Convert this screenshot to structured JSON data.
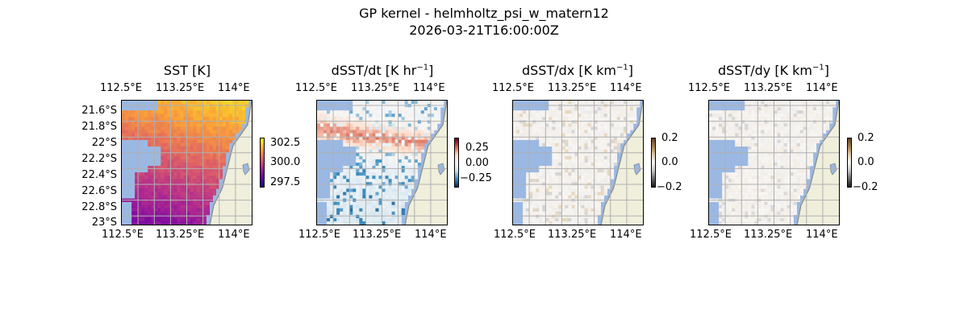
{
  "figure": {
    "title_line1": "GP kernel - helmholtz_psi_w_matern12",
    "title_line2": "2026-03-21T16:00:00Z"
  },
  "map_extent": {
    "lon": [
      112.45,
      114.1
    ],
    "lat": [
      -23.03,
      -21.48
    ]
  },
  "panels": [
    {
      "title": "SST [K]",
      "field": "sst",
      "colormap": "plasma-like (dark purple → orange → yellow)",
      "colorbar": {
        "min": 297.0,
        "max": 303.2,
        "ticks": [
          "302.5",
          "300.0",
          "297.5"
        ],
        "tick_values": [
          302.5,
          300.0,
          297.5
        ]
      },
      "top_lon_ticks": [
        "112.5°E",
        "113.25°E",
        "114°E"
      ],
      "bottom_lon_ticks": [
        "112.5°E",
        "113.25°E",
        "114°E"
      ],
      "lat_ticks": [
        "21.6°S",
        "21.8°S",
        "22°S",
        "22.2°S",
        "22.4°S",
        "22.6°S",
        "22.8°S",
        "23°S"
      ]
    },
    {
      "title": "dSST/dt [K hr",
      "title_sup": "−1",
      "title_end": "]",
      "field": "dsst_dt",
      "colormap": "diverging blue-white-red",
      "colorbar": {
        "min": -0.4,
        "max": 0.4,
        "ticks": [
          "0.25",
          "0.00",
          "−0.25"
        ],
        "tick_values": [
          0.25,
          0.0,
          -0.25
        ]
      },
      "top_lon_ticks": [
        "112.5°E",
        "113.25°E",
        "114°E"
      ],
      "bottom_lon_ticks": [
        "112.5°E",
        "113.25°E",
        "114°E"
      ]
    },
    {
      "title": "dSST/dx [K km",
      "title_sup": "−1",
      "title_end": "]",
      "field": "dsst_dx",
      "colormap": "diverging black-white-brown",
      "colorbar": {
        "min": -0.2,
        "max": 0.2,
        "ticks": [
          "0.2",
          "0.0",
          "−0.2"
        ],
        "tick_values": [
          0.2,
          0.0,
          -0.2
        ]
      },
      "top_lon_ticks": [
        "112.5°E",
        "113.25°E",
        "114°E"
      ],
      "bottom_lon_ticks": [
        "112.5°E",
        "113.25°E",
        "114°E"
      ]
    },
    {
      "title": "dSST/dy [K km",
      "title_sup": "−1",
      "title_end": "]",
      "field": "dsst_dy",
      "colormap": "diverging black-white-brown",
      "colorbar": {
        "min": -0.2,
        "max": 0.2,
        "ticks": [
          "0.2",
          "0.0",
          "−0.2"
        ],
        "tick_values": [
          0.2,
          0.0,
          -0.2
        ]
      },
      "top_lon_ticks": [
        "112.5°E",
        "113.25°E",
        "114°E"
      ],
      "bottom_lon_ticks": [
        "112.5°E",
        "113.25°E",
        "114°E"
      ]
    }
  ],
  "colors": {
    "ocean_nodata": "#9bb8e3",
    "land": "#efefdc",
    "coastline": "#888888",
    "gridline": "#b0b0b0"
  }
}
